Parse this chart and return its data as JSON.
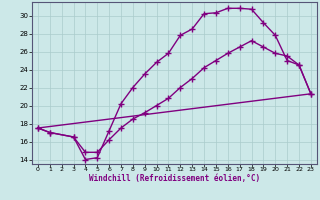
{
  "xlabel": "Windchill (Refroidissement éolien,°C)",
  "background_color": "#cce8e8",
  "line_color": "#800080",
  "grid_color": "#aacccc",
  "xlim": [
    -0.5,
    23.5
  ],
  "ylim": [
    13.5,
    31.5
  ],
  "yticks": [
    14,
    16,
    18,
    20,
    22,
    24,
    26,
    28,
    30
  ],
  "xticks": [
    0,
    1,
    2,
    3,
    4,
    5,
    6,
    7,
    8,
    9,
    10,
    11,
    12,
    13,
    14,
    15,
    16,
    17,
    18,
    19,
    20,
    21,
    22,
    23
  ],
  "curve1_x": [
    0,
    1,
    3,
    4,
    5,
    6,
    7,
    8,
    9,
    10,
    11,
    12,
    13,
    14,
    15,
    16,
    17,
    18,
    19,
    20,
    21,
    22,
    23
  ],
  "curve1_y": [
    17.5,
    17.0,
    16.5,
    14.0,
    14.2,
    17.2,
    20.2,
    22.0,
    23.5,
    24.8,
    25.8,
    27.8,
    28.5,
    30.2,
    30.3,
    30.8,
    30.8,
    30.7,
    29.2,
    27.8,
    25.0,
    24.5,
    21.3
  ],
  "curve2_x": [
    0,
    1,
    3,
    4,
    5,
    6,
    7,
    8,
    9,
    10,
    11,
    12,
    13,
    14,
    15,
    16,
    17,
    18,
    19,
    20,
    21,
    22,
    23
  ],
  "curve2_y": [
    17.5,
    17.0,
    16.5,
    14.8,
    14.8,
    16.2,
    17.5,
    18.5,
    19.2,
    20.0,
    20.8,
    22.0,
    23.0,
    24.2,
    25.0,
    25.8,
    26.5,
    27.2,
    26.5,
    25.8,
    25.5,
    24.5,
    21.3
  ],
  "curve3_x": [
    0,
    23
  ],
  "curve3_y": [
    17.5,
    21.3
  ]
}
